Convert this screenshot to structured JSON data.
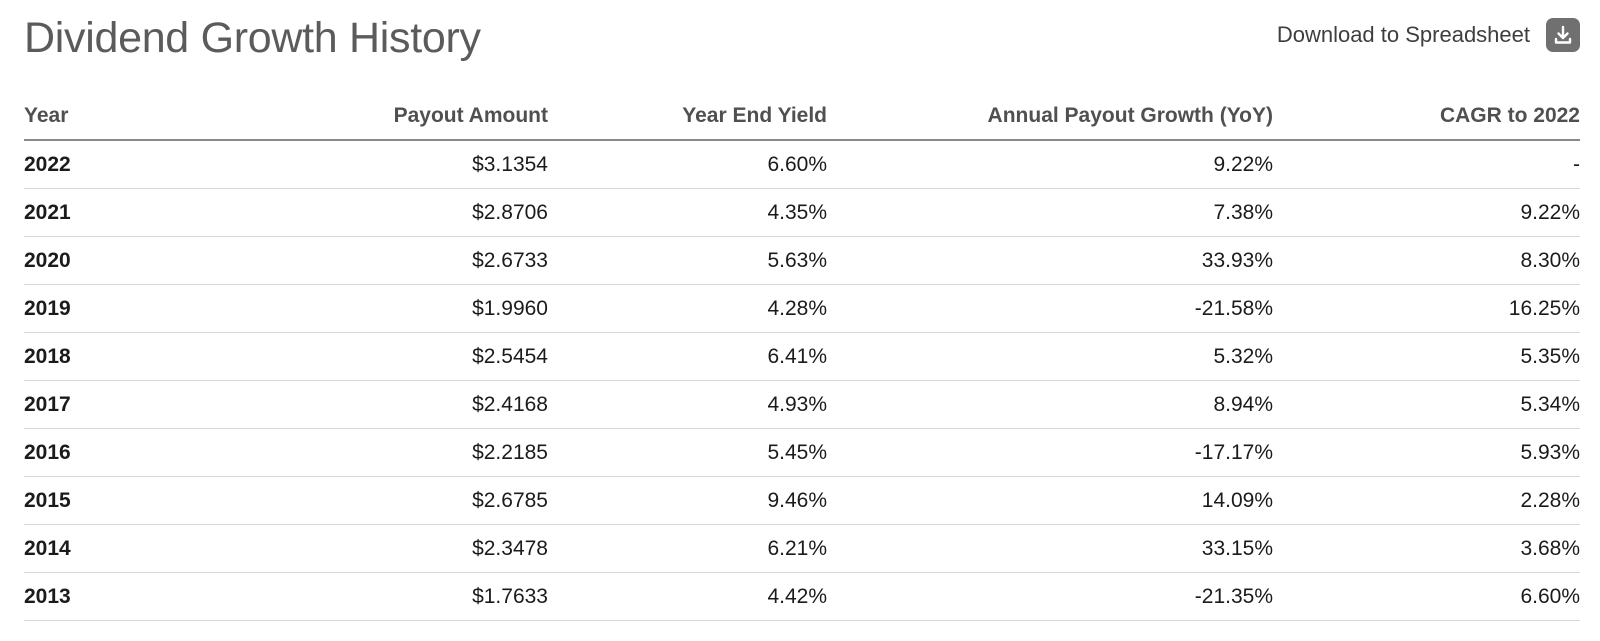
{
  "header": {
    "title": "Dividend Growth History",
    "download_label": "Download to Spreadsheet",
    "download_icon": "download-icon"
  },
  "table": {
    "columns": [
      "Year",
      "Payout Amount",
      "Year End Yield",
      "Annual Payout Growth (YoY)",
      "CAGR to 2022"
    ],
    "rows": [
      {
        "year": "2022",
        "payout": "$3.1354",
        "yield": "6.60%",
        "growth": "9.22%",
        "cagr": "-"
      },
      {
        "year": "2021",
        "payout": "$2.8706",
        "yield": "4.35%",
        "growth": "7.38%",
        "cagr": "9.22%"
      },
      {
        "year": "2020",
        "payout": "$2.6733",
        "yield": "5.63%",
        "growth": "33.93%",
        "cagr": "8.30%"
      },
      {
        "year": "2019",
        "payout": "$1.9960",
        "yield": "4.28%",
        "growth": "-21.58%",
        "cagr": "16.25%"
      },
      {
        "year": "2018",
        "payout": "$2.5454",
        "yield": "6.41%",
        "growth": "5.32%",
        "cagr": "5.35%"
      },
      {
        "year": "2017",
        "payout": "$2.4168",
        "yield": "4.93%",
        "growth": "8.94%",
        "cagr": "5.34%"
      },
      {
        "year": "2016",
        "payout": "$2.2185",
        "yield": "5.45%",
        "growth": "-17.17%",
        "cagr": "5.93%"
      },
      {
        "year": "2015",
        "payout": "$2.6785",
        "yield": "9.46%",
        "growth": "14.09%",
        "cagr": "2.28%"
      },
      {
        "year": "2014",
        "payout": "$2.3478",
        "yield": "6.21%",
        "growth": "33.15%",
        "cagr": "3.68%"
      },
      {
        "year": "2013",
        "payout": "$1.7633",
        "yield": "4.42%",
        "growth": "-21.35%",
        "cagr": "6.60%"
      }
    ]
  }
}
